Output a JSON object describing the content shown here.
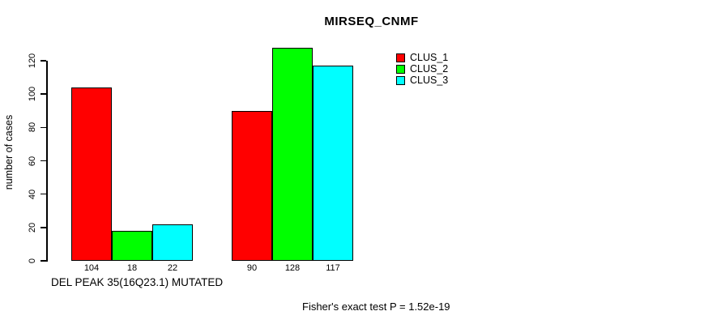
{
  "chart_data": {
    "type": "bar",
    "title": "MIRSEQ_CNMF",
    "ylabel": "number of cases",
    "xlabel": "DEL PEAK 35(16Q23.1) MUTATED",
    "annotation": "Fisher's exact test P = 1.52e-19",
    "ylim": [
      0,
      120
    ],
    "yticks": [
      0,
      20,
      40,
      60,
      80,
      100,
      120
    ],
    "grid": false,
    "legend_position": "top-right",
    "bar_border_color": "#000000",
    "series": [
      {
        "name": "CLUS_1",
        "color": "#FF0000",
        "values": [
          104,
          90
        ]
      },
      {
        "name": "CLUS_2",
        "color": "#00FF00",
        "values": [
          18,
          128
        ]
      },
      {
        "name": "CLUS_3",
        "color": "#00FFFF",
        "values": [
          22,
          117
        ]
      }
    ]
  }
}
